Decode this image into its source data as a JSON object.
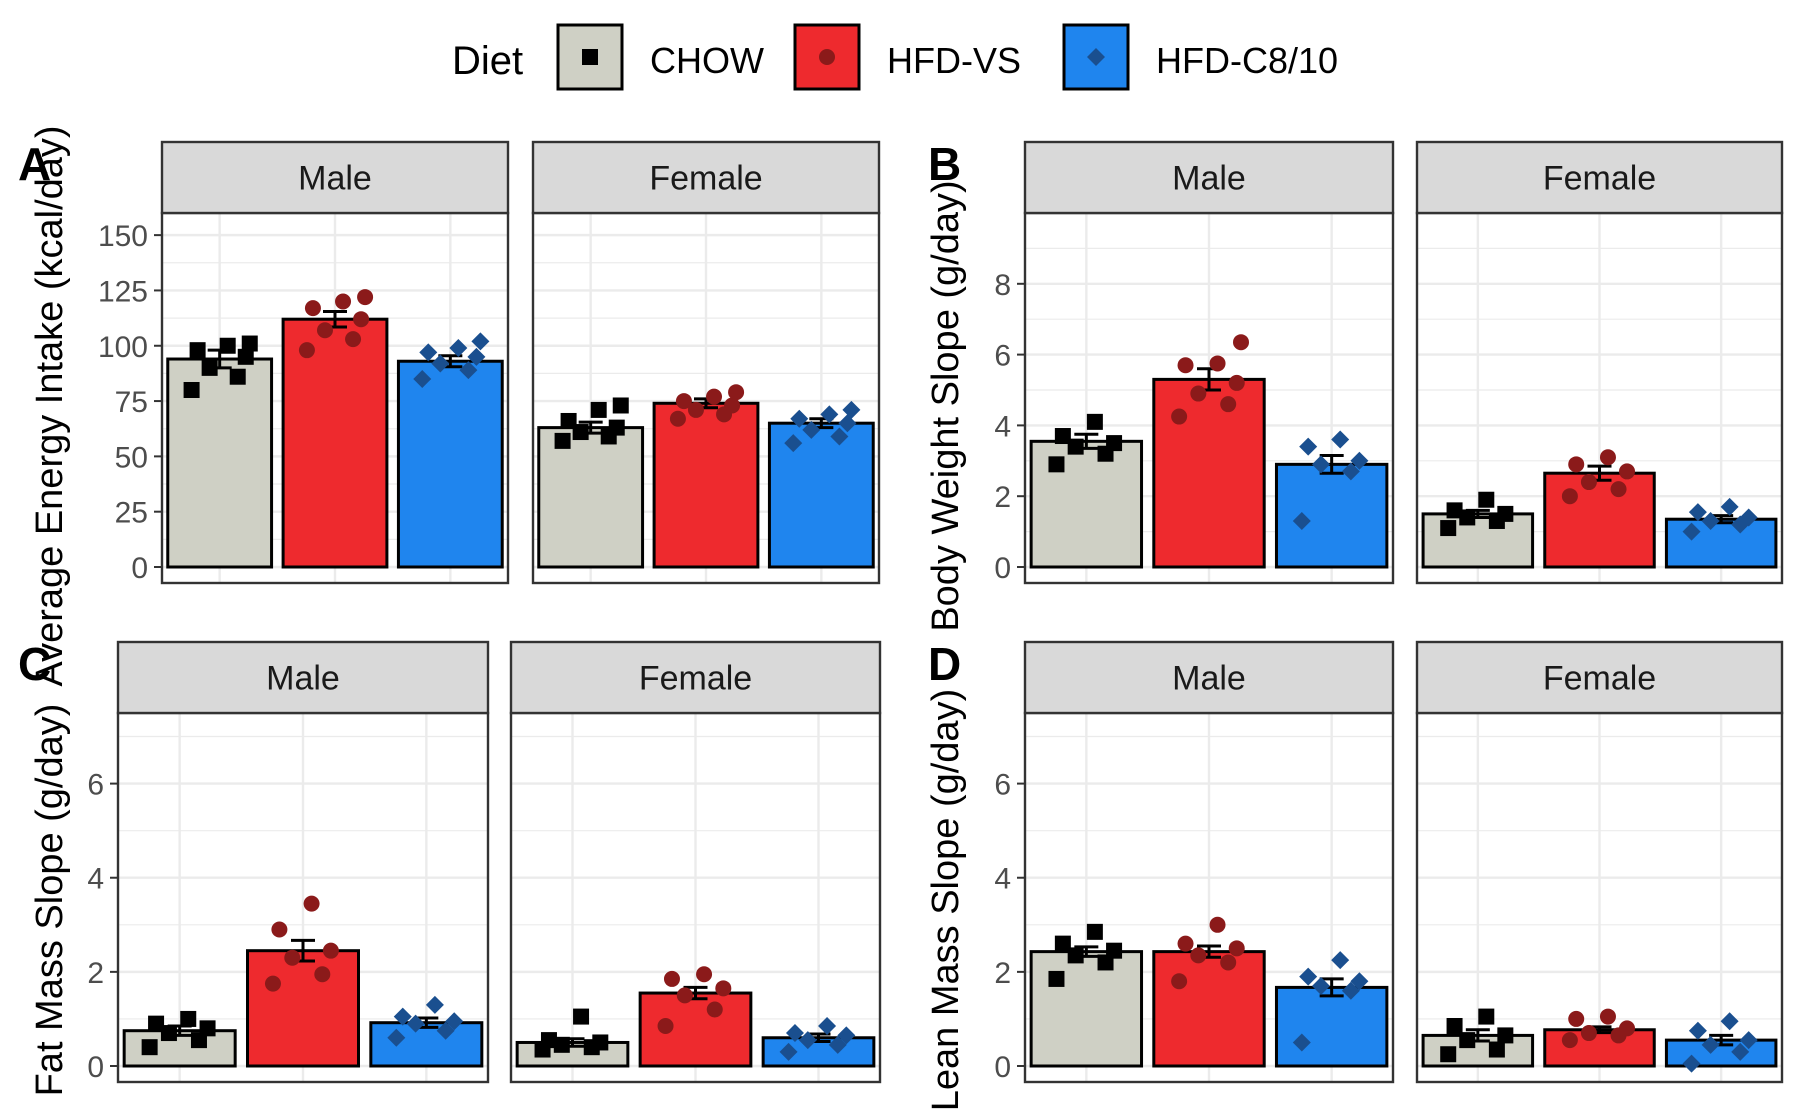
{
  "legend": {
    "title": "Diet",
    "items": [
      {
        "label": "CHOW",
        "fill": "#cfd0c5",
        "point": "#000000",
        "shape": "square"
      },
      {
        "label": "HFD-VS",
        "fill": "#ee2a2e",
        "point": "#8b1a1a",
        "shape": "circle"
      },
      {
        "label": "HFD-C8/10",
        "fill": "#1f85ee",
        "point": "#1a4f8f",
        "shape": "diamond"
      }
    ]
  },
  "chart_data": [
    {
      "type": "bar",
      "tag": "A",
      "ylabel": "Average Energy Intake (kcal/day)",
      "ylim": [
        0,
        160
      ],
      "yticks": [
        0,
        25,
        50,
        75,
        100,
        125,
        150
      ],
      "grid": true,
      "categories": [
        "CHOW",
        "HFD-VS",
        "HFD-C8/10"
      ],
      "facets": [
        {
          "label": "Male",
          "values": [
            94,
            112,
            93
          ],
          "errors": [
            4,
            3.5,
            2.5
          ],
          "points": [
            [
              80,
              86,
              90,
              95,
              98,
              100,
              101
            ],
            [
              98,
              103,
              107,
              112,
              117,
              120,
              122
            ],
            [
              85,
              89,
              92,
              95,
              97,
              99,
              102
            ]
          ]
        },
        {
          "label": "Female",
          "values": [
            63,
            74,
            65
          ],
          "errors": [
            2.5,
            2,
            2
          ],
          "points": [
            [
              57,
              59,
              61,
              63,
              66,
              71,
              73
            ],
            [
              67,
              69,
              71,
              73,
              75,
              77,
              79
            ],
            [
              56,
              59,
              62,
              65,
              67,
              69,
              71
            ]
          ]
        }
      ]
    },
    {
      "type": "bar",
      "tag": "B",
      "ylabel": "Body Weight Slope (g/day)",
      "ylim": [
        0,
        10
      ],
      "yticks": [
        0,
        2,
        4,
        6,
        8
      ],
      "grid": true,
      "categories": [
        "CHOW",
        "HFD-VS",
        "HFD-C8/10"
      ],
      "facets": [
        {
          "label": "Male",
          "values": [
            3.55,
            5.3,
            2.9
          ],
          "errors": [
            0.2,
            0.3,
            0.25
          ],
          "points": [
            [
              2.9,
              3.2,
              3.4,
              3.5,
              3.7,
              4.1
            ],
            [
              4.25,
              4.6,
              4.9,
              5.2,
              5.7,
              5.75,
              6.35
            ],
            [
              1.3,
              2.7,
              2.9,
              3.0,
              3.4,
              3.6
            ]
          ]
        },
        {
          "label": "Female",
          "values": [
            1.5,
            2.65,
            1.35
          ],
          "errors": [
            0.1,
            0.2,
            0.1
          ],
          "points": [
            [
              1.1,
              1.3,
              1.4,
              1.5,
              1.6,
              1.9
            ],
            [
              2.0,
              2.2,
              2.4,
              2.7,
              2.9,
              3.1
            ],
            [
              1.0,
              1.2,
              1.3,
              1.4,
              1.55,
              1.7
            ]
          ]
        }
      ]
    },
    {
      "type": "bar",
      "tag": "C",
      "ylabel": "Fat Mass Slope (g/day)",
      "ylim": [
        0,
        7.5
      ],
      "yticks": [
        0,
        2,
        4,
        6
      ],
      "grid": true,
      "categories": [
        "CHOW",
        "HFD-VS",
        "HFD-C8/10"
      ],
      "facets": [
        {
          "label": "Male",
          "values": [
            0.75,
            2.45,
            0.92
          ],
          "errors": [
            0.1,
            0.22,
            0.1
          ],
          "points": [
            [
              0.4,
              0.55,
              0.7,
              0.8,
              0.9,
              1.0
            ],
            [
              1.75,
              1.95,
              2.3,
              2.45,
              2.9,
              3.45
            ],
            [
              0.6,
              0.75,
              0.9,
              0.95,
              1.05,
              1.3
            ]
          ]
        },
        {
          "label": "Female",
          "values": [
            0.5,
            1.55,
            0.6
          ],
          "errors": [
            0.08,
            0.12,
            0.08
          ],
          "points": [
            [
              0.35,
              0.4,
              0.45,
              0.5,
              0.55,
              1.05
            ],
            [
              0.85,
              1.2,
              1.5,
              1.65,
              1.85,
              1.95
            ],
            [
              0.3,
              0.45,
              0.55,
              0.65,
              0.7,
              0.85
            ]
          ]
        }
      ]
    },
    {
      "type": "bar",
      "tag": "D",
      "ylabel": "Lean Mass Slope (g/day)",
      "ylim": [
        0,
        7.5
      ],
      "yticks": [
        0,
        2,
        4,
        6
      ],
      "grid": true,
      "categories": [
        "CHOW",
        "HFD-VS",
        "HFD-C8/10"
      ],
      "facets": [
        {
          "label": "Male",
          "values": [
            2.43,
            2.43,
            1.67
          ],
          "errors": [
            0.1,
            0.12,
            0.18
          ],
          "points": [
            [
              1.85,
              2.2,
              2.35,
              2.45,
              2.6,
              2.85
            ],
            [
              1.8,
              2.2,
              2.35,
              2.5,
              2.6,
              3.0
            ],
            [
              0.5,
              1.6,
              1.7,
              1.8,
              1.9,
              2.25
            ]
          ]
        },
        {
          "label": "Female",
          "values": [
            0.65,
            0.77,
            0.55
          ],
          "errors": [
            0.12,
            0.06,
            0.1
          ],
          "points": [
            [
              0.25,
              0.35,
              0.55,
              0.65,
              0.85,
              1.05
            ],
            [
              0.55,
              0.65,
              0.7,
              0.8,
              1.0,
              1.05
            ],
            [
              0.05,
              0.3,
              0.45,
              0.55,
              0.75,
              0.95
            ]
          ]
        }
      ]
    }
  ]
}
